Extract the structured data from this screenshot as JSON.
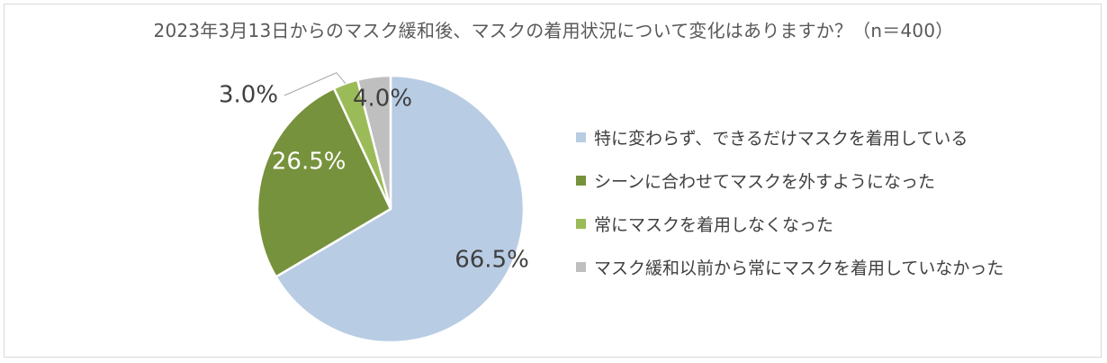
{
  "chart_data": {
    "type": "pie",
    "title": "2023年3月13日からのマスク緩和後、マスクの着用状況について変化はありますか？（n＝400）",
    "categories": [
      "特に変わらず、できるだけマスクを着用している",
      "シーンに合わせてマスクを外すようになった",
      "常にマスクを着用しなくなった",
      "マスク緩和以前から常にマスクを着用していなかった"
    ],
    "values": [
      66.5,
      26.5,
      3.0,
      4.0
    ],
    "data_labels": [
      "66.5%",
      "26.5%",
      "3.0%",
      "4.0%"
    ],
    "colors": [
      "#b8cce4",
      "#76923c",
      "#9bbb59",
      "#bfbfbf"
    ],
    "label_colors": [
      "#404040",
      "#ffffff",
      "#404040",
      "#404040"
    ],
    "legend_position": "right"
  }
}
